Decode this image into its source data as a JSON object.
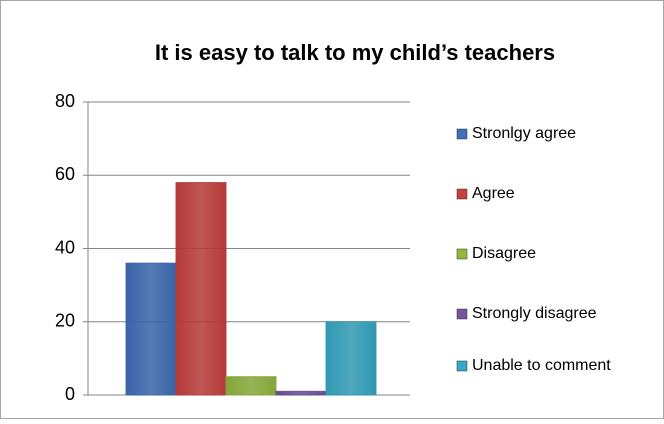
{
  "chart_data": {
    "type": "bar",
    "title": "It is easy to talk to my child’s teachers",
    "series": [
      {
        "name": "Stronlgy agree",
        "color": "#3f6fba",
        "values": [
          36
        ]
      },
      {
        "name": "Agree",
        "color": "#c8403e",
        "values": [
          58
        ]
      },
      {
        "name": "Disagree",
        "color": "#93b83f",
        "values": [
          5
        ]
      },
      {
        "name": "Strongly disagree",
        "color": "#7254a0",
        "values": [
          1
        ]
      },
      {
        "name": "Unable to comment",
        "color": "#35a9c6",
        "values": [
          20
        ]
      }
    ],
    "ylim": [
      0,
      80
    ],
    "yticks": [
      0,
      20,
      40,
      60,
      80
    ],
    "grid": true,
    "legend": "right"
  }
}
